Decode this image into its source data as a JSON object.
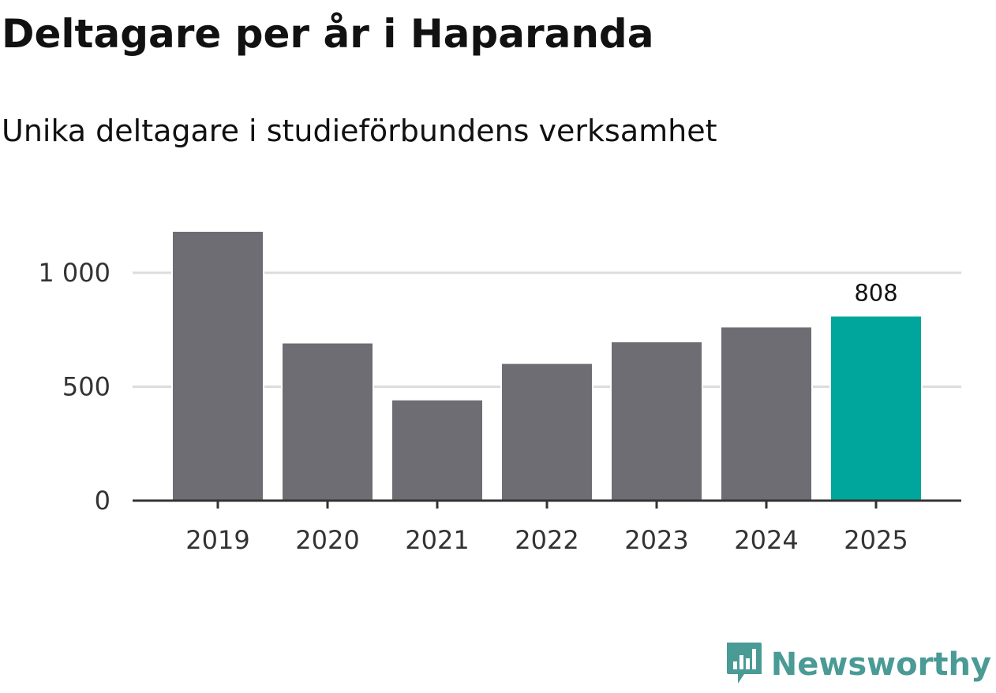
{
  "title": "Deltagare per år i Haparanda",
  "subtitle": "Unika deltagare i studieförbundens verksamhet",
  "brand": {
    "name": "Newsworthy",
    "icon": "newsworthy-logo-icon",
    "color": "#4a9a96"
  },
  "colors": {
    "bar": "#6e6d73",
    "highlight": "#00a59b",
    "grid": "#dcdcdc",
    "axis": "#333333"
  },
  "chart_data": {
    "type": "bar",
    "title": "Deltagare per år i Haparanda",
    "subtitle": "Unika deltagare i studieförbundens verksamhet",
    "categories": [
      "2019",
      "2020",
      "2021",
      "2022",
      "2023",
      "2024",
      "2025"
    ],
    "values": [
      1180,
      690,
      440,
      600,
      695,
      760,
      808
    ],
    "highlight_index": 6,
    "data_labels": [
      {
        "index": 6,
        "text": "808"
      }
    ],
    "ylim": [
      0,
      1230
    ],
    "yticks": [
      0,
      500,
      1000
    ],
    "ytick_labels": [
      "0",
      "500",
      "1 000"
    ],
    "xlabel": "",
    "ylabel": "",
    "grid": true,
    "legend": false
  }
}
